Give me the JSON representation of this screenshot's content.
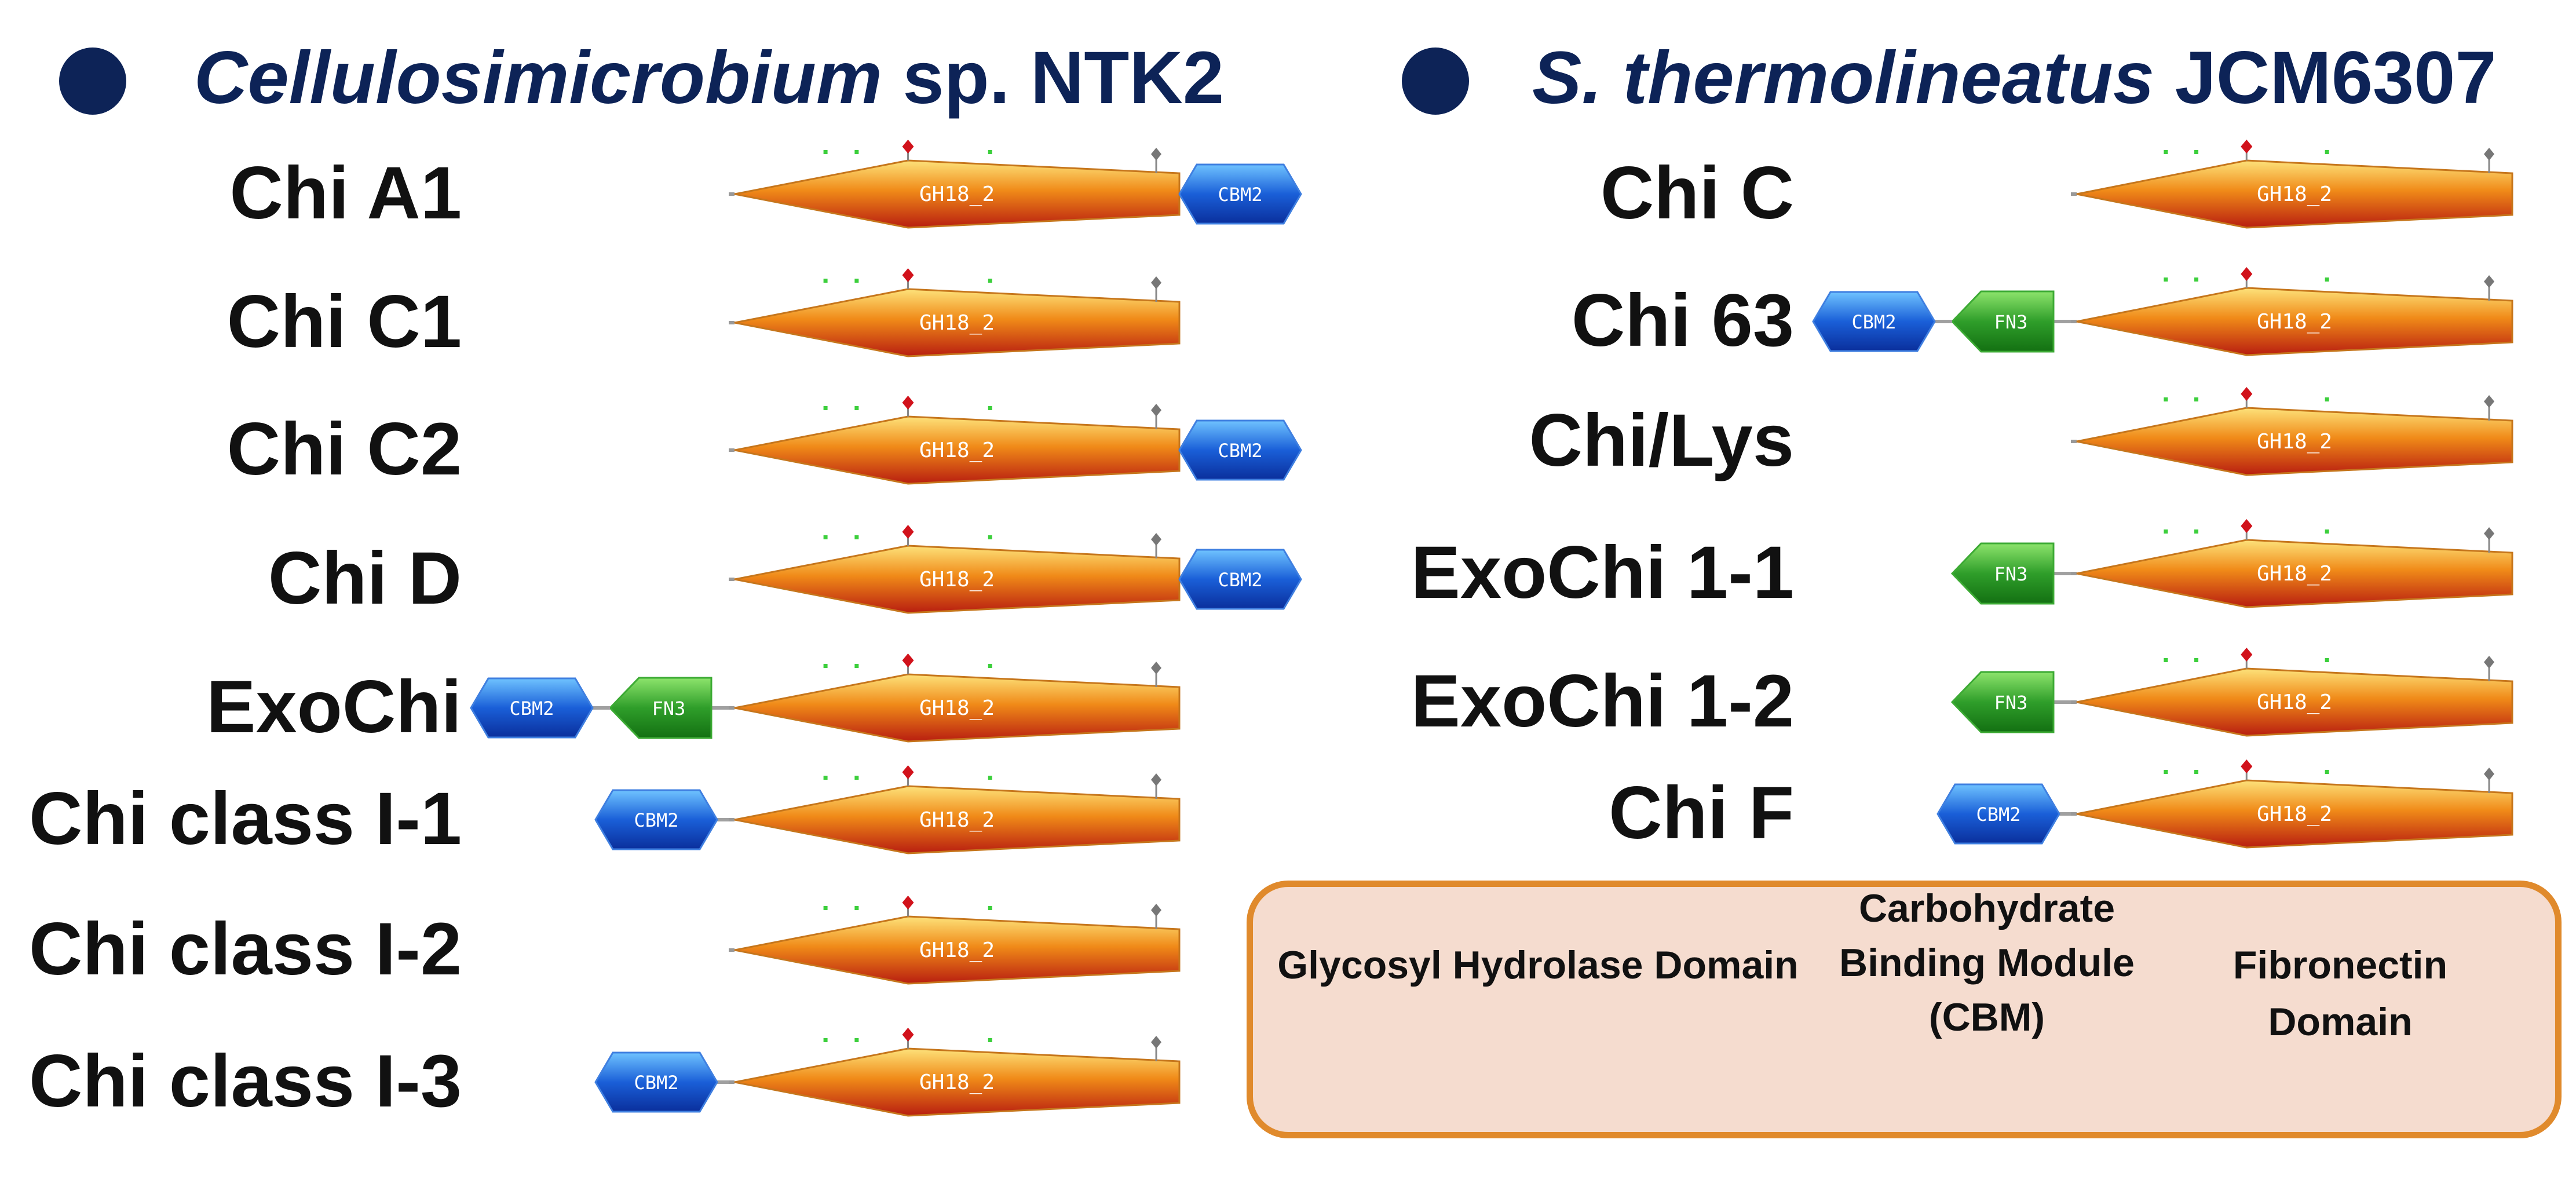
{
  "groups": [
    {
      "species_italic": "Cellulosimicrobium",
      "species_rest": " sp. NTK2"
    },
    {
      "species_italic": "S. thermolineatus",
      "species_rest": " JCM6307"
    }
  ],
  "left_proteins": [
    {
      "name": "Chi A1",
      "domains": [
        "GH18",
        "CBM2"
      ]
    },
    {
      "name": "Chi C1",
      "domains": [
        "GH18"
      ]
    },
    {
      "name": "Chi C2",
      "domains": [
        "GH18",
        "CBM2"
      ]
    },
    {
      "name": "Chi D",
      "domains": [
        "GH18",
        "CBM2"
      ]
    },
    {
      "name": "ExoChi",
      "domains": [
        "CBM2",
        "FN3",
        "GH18"
      ]
    },
    {
      "name": "Chi class I-1",
      "domains": [
        "CBM2",
        "GH18"
      ]
    },
    {
      "name": "Chi class I-2",
      "domains": [
        "GH18"
      ]
    },
    {
      "name": "Chi class I-3",
      "domains": [
        "CBM2",
        "GH18"
      ]
    }
  ],
  "right_proteins": [
    {
      "name": "Chi C",
      "domains": [
        "GH18"
      ]
    },
    {
      "name": "Chi 63",
      "domains": [
        "CBM2",
        "FN3",
        "GH18"
      ]
    },
    {
      "name": "Chi/Lys",
      "domains": [
        "GH18"
      ]
    },
    {
      "name": "ExoChi 1-1",
      "domains": [
        "FN3",
        "GH18"
      ]
    },
    {
      "name": "ExoChi 1-2",
      "domains": [
        "FN3",
        "GH18"
      ]
    },
    {
      "name": "Chi F",
      "domains": [
        "CBM2",
        "GH18"
      ]
    }
  ],
  "domain_labels": {
    "GH18": "GH18_2",
    "CBM2": "CBM2",
    "FN3": "FN3"
  },
  "legend": {
    "gh_label": "Glycosyl Hydrolase Domain",
    "cbm_line1": "Carbohydrate",
    "cbm_line2": "Binding Module",
    "cbm_line3": "(CBM)",
    "fn_line1": "Fibronectin",
    "fn_line2": "Domain"
  },
  "colors": {
    "title": "#0d2357",
    "gh_top": "#fde27a",
    "gh_mid": "#f08a18",
    "gh_bottom": "#b81e10",
    "cbm": "#1a5fd8",
    "fn3": "#2f9e2a",
    "legend_bg": "#f5dccf",
    "legend_border": "#e08a2c"
  }
}
